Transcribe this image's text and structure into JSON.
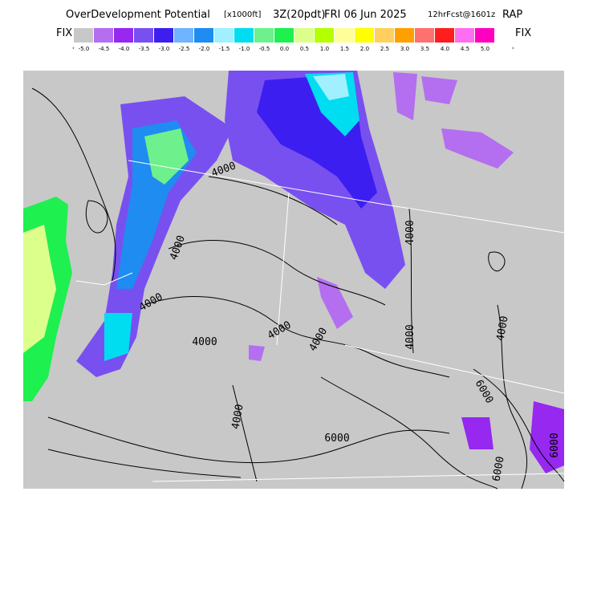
{
  "header": {
    "title": "OverDevelopment Potential",
    "units": "[x1000ft]",
    "run": "3Z(20pdt)",
    "date": "FRI 06 Jun 2025",
    "forecast": "12hrFcst@1601z",
    "model": "RAP"
  },
  "legend": {
    "left": "FIX",
    "right": "FIX",
    "low_arrow": "‹",
    "high_arrow": "›",
    "colors": [
      "#c8c8c8",
      "#b46ef0",
      "#9628f0",
      "#7850f0",
      "#3c1ef0",
      "#6eb4ff",
      "#1e8cf0",
      "#a0f0ff",
      "#00dcf0",
      "#6ef08c",
      "#1ef050",
      "#dcff8c",
      "#b4ff00",
      "#ffff9a",
      "#ffff00",
      "#ffd060",
      "#ffa000",
      "#ff7070",
      "#ff1e1e",
      "#ff6ef0",
      "#ff00c0"
    ],
    "labels": [
      "-5.0",
      "-4.5",
      "-4.0",
      "-3.5",
      "-3.0",
      "-2.5",
      "-2.0",
      "-1.5",
      "-1.0",
      "-0.5",
      "0.0",
      "0.5",
      "1.0",
      "1.5",
      "2.0",
      "2.5",
      "3.0",
      "3.5",
      "4.0",
      "4.5",
      "5.0"
    ]
  },
  "contour_labels": [
    "4000",
    "4000",
    "4000",
    "4000",
    "4000",
    "4000",
    "4000",
    "4000",
    "4000",
    "4000",
    "6000",
    "6000",
    "6000",
    "6000"
  ]
}
